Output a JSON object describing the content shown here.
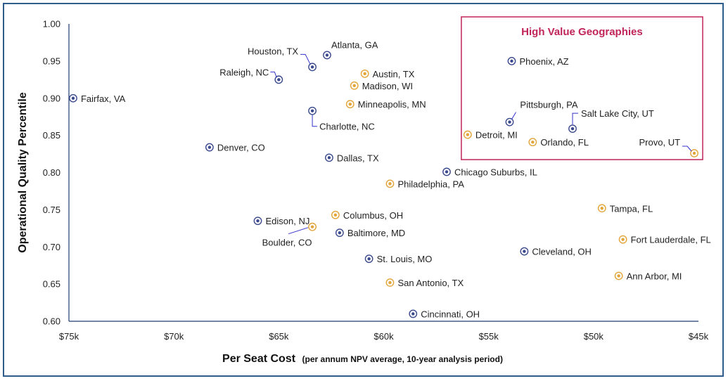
{
  "chart_data": {
    "type": "scatter",
    "xlabel": "Per Seat Cost",
    "xlabel_note": "(per annum NPV average, 10-year analysis period)",
    "ylabel": "Operational Quality Percentile",
    "xlim": [
      75,
      45
    ],
    "ylim": [
      0.6,
      1.0
    ],
    "x_reversed": true,
    "x_ticks": [
      75,
      70,
      65,
      60,
      55,
      50,
      45
    ],
    "x_tick_labels": [
      "$75k",
      "$70k",
      "$65k",
      "$60k",
      "$55k",
      "$50k",
      "$45k"
    ],
    "y_ticks": [
      1.0,
      0.95,
      0.9,
      0.85,
      0.8,
      0.75,
      0.7,
      0.65,
      0.6
    ],
    "y_tick_labels": [
      "1.00",
      "0.95",
      "0.90",
      "0.85",
      "0.80",
      "0.75",
      "0.70",
      "0.65",
      "0.60"
    ],
    "grid": false,
    "highlight_box": {
      "title": "High Value Geographies",
      "x_range": [
        56.3,
        45.2
      ],
      "y_range": [
        0.825,
        1.0
      ],
      "color": "#c0245a"
    },
    "colors": {
      "blue": "#3b4a8c",
      "orange": "#e2a53a",
      "axis": "#1f3b73",
      "leader": "#3333cc"
    },
    "points": [
      {
        "label": "Fairfax, VA",
        "x": 74.8,
        "y": 0.9,
        "group": "blue"
      },
      {
        "label": "Houston, TX",
        "x": 63.4,
        "y": 0.942,
        "group": "blue"
      },
      {
        "label": "Atlanta, GA",
        "x": 62.7,
        "y": 0.958,
        "group": "blue"
      },
      {
        "label": "Raleigh, NC",
        "x": 65.0,
        "y": 0.925,
        "group": "blue"
      },
      {
        "label": "Austin, TX",
        "x": 60.9,
        "y": 0.933,
        "group": "orange"
      },
      {
        "label": "Madison, WI",
        "x": 61.4,
        "y": 0.917,
        "group": "orange"
      },
      {
        "label": "Minneapolis, MN",
        "x": 61.6,
        "y": 0.892,
        "group": "orange"
      },
      {
        "label": "Charlotte, NC",
        "x": 63.4,
        "y": 0.883,
        "group": "blue"
      },
      {
        "label": "Denver, CO",
        "x": 68.3,
        "y": 0.834,
        "group": "blue"
      },
      {
        "label": "Dallas, TX",
        "x": 62.6,
        "y": 0.82,
        "group": "blue"
      },
      {
        "label": "Phoenix, AZ",
        "x": 53.9,
        "y": 0.95,
        "group": "blue"
      },
      {
        "label": "Pittsburgh, PA",
        "x": 54.0,
        "y": 0.868,
        "group": "blue"
      },
      {
        "label": "Salt Lake City, UT",
        "x": 51.0,
        "y": 0.859,
        "group": "blue"
      },
      {
        "label": "Detroit, MI",
        "x": 56.0,
        "y": 0.851,
        "group": "orange"
      },
      {
        "label": "Orlando, FL",
        "x": 52.9,
        "y": 0.841,
        "group": "orange"
      },
      {
        "label": "Provo, UT",
        "x": 45.2,
        "y": 0.826,
        "group": "orange"
      },
      {
        "label": "Chicago Suburbs, IL",
        "x": 57.0,
        "y": 0.801,
        "group": "blue"
      },
      {
        "label": "Philadelphia, PA",
        "x": 59.7,
        "y": 0.785,
        "group": "orange"
      },
      {
        "label": "Tampa, FL",
        "x": 49.6,
        "y": 0.752,
        "group": "orange"
      },
      {
        "label": "Edison, NJ",
        "x": 66.0,
        "y": 0.735,
        "group": "blue"
      },
      {
        "label": "Columbus, OH",
        "x": 62.3,
        "y": 0.743,
        "group": "orange"
      },
      {
        "label": "Boulder, CO",
        "x": 63.4,
        "y": 0.727,
        "group": "orange"
      },
      {
        "label": "Baltimore, MD",
        "x": 62.1,
        "y": 0.719,
        "group": "blue"
      },
      {
        "label": "Fort Lauderdale, FL",
        "x": 48.6,
        "y": 0.71,
        "group": "orange"
      },
      {
        "label": "Cleveland, OH",
        "x": 53.3,
        "y": 0.694,
        "group": "blue"
      },
      {
        "label": "St. Louis, MO",
        "x": 60.7,
        "y": 0.684,
        "group": "blue"
      },
      {
        "label": "Ann Arbor, MI",
        "x": 48.8,
        "y": 0.661,
        "group": "orange"
      },
      {
        "label": "San Antonio, TX",
        "x": 59.7,
        "y": 0.652,
        "group": "orange"
      },
      {
        "label": "Cincinnati, OH",
        "x": 58.6,
        "y": 0.61,
        "group": "blue"
      }
    ]
  }
}
